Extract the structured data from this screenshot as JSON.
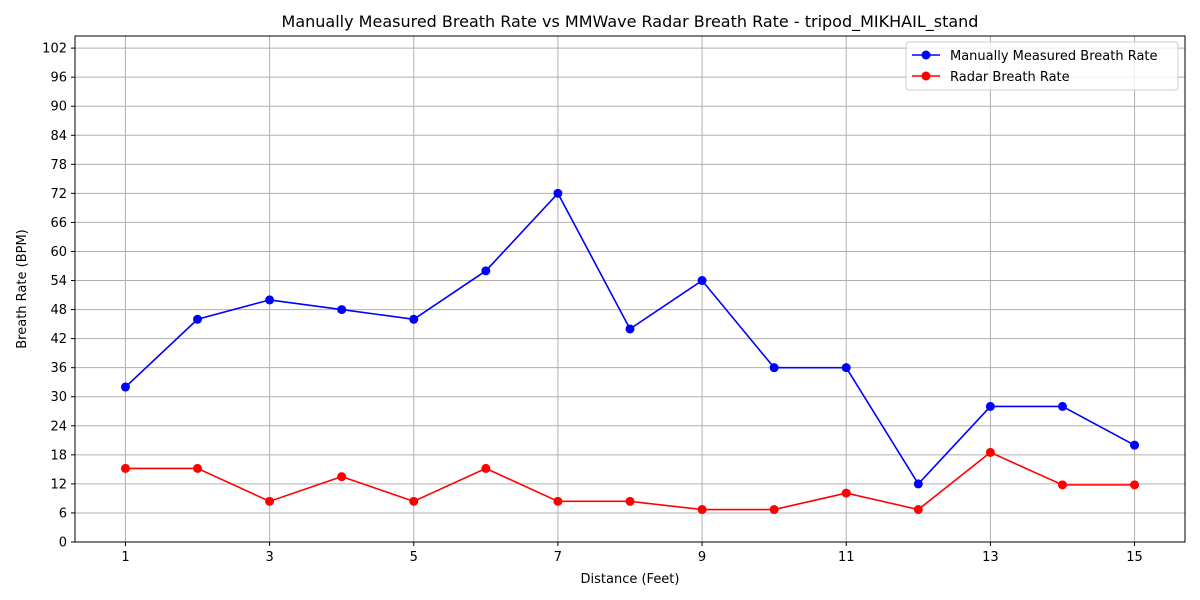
{
  "chart_data": {
    "type": "line",
    "title": "Manually Measured Breath Rate vs MMWave Radar Breath Rate - tripod_MIKHAIL_stand",
    "xlabel": "Distance (Feet)",
    "ylabel": "Breath Rate (BPM)",
    "x": [
      1,
      2,
      3,
      4,
      5,
      6,
      7,
      8,
      9,
      10,
      11,
      12,
      13,
      14,
      15
    ],
    "xticks": [
      1,
      3,
      5,
      7,
      9,
      11,
      13,
      15
    ],
    "yticks": [
      0,
      6,
      12,
      18,
      24,
      30,
      36,
      42,
      48,
      54,
      60,
      66,
      72,
      78,
      84,
      90,
      96,
      102
    ],
    "xlim": [
      0.3,
      15.7
    ],
    "ylim": [
      0,
      104.5
    ],
    "grid": true,
    "legend_position": "top-right",
    "series": [
      {
        "name": "Manually Measured Breath Rate",
        "color": "#0000ff",
        "marker": "circle",
        "values": [
          32,
          46,
          50,
          48,
          46,
          56,
          72,
          44,
          54,
          36,
          36,
          12,
          28,
          28,
          20
        ]
      },
      {
        "name": "Radar Breath Rate",
        "color": "#ff0000",
        "marker": "circle",
        "values": [
          15.2,
          15.2,
          8.4,
          13.5,
          8.4,
          15.2,
          8.4,
          8.4,
          6.7,
          6.7,
          10.1,
          6.7,
          18.5,
          11.8,
          11.8
        ]
      }
    ]
  }
}
